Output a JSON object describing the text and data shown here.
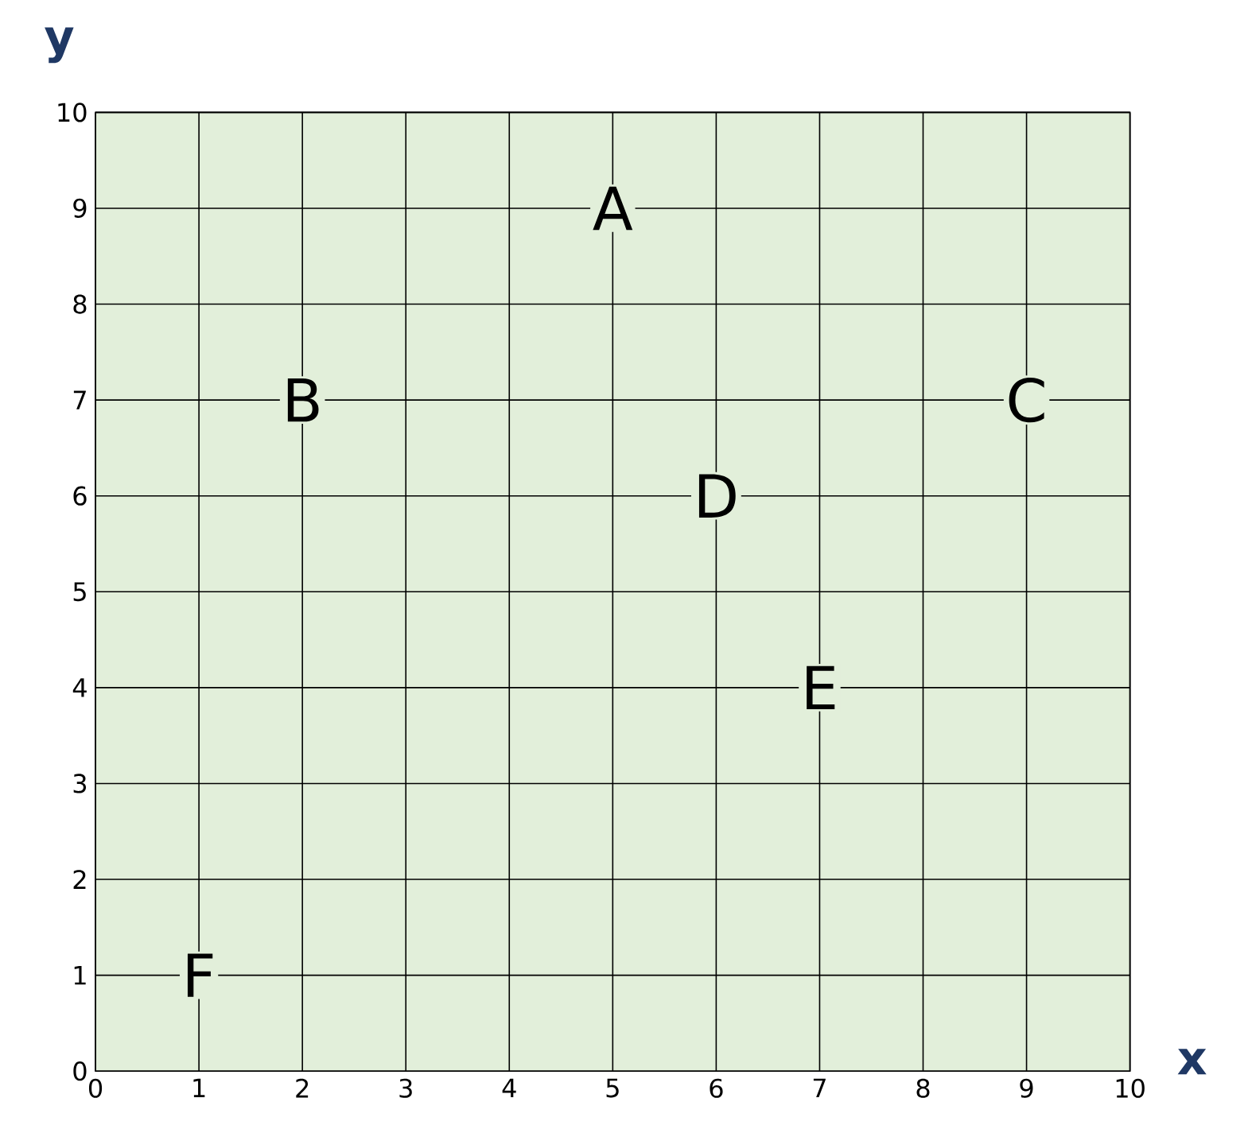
{
  "chart_data": {
    "type": "scatter",
    "xlabel": "x",
    "ylabel": "y",
    "annotations": [
      {
        "text": "A",
        "x": 5,
        "y": 9
      },
      {
        "text": "B",
        "x": 2,
        "y": 7
      },
      {
        "text": "C",
        "x": 9,
        "y": 7
      },
      {
        "text": "D",
        "x": 6,
        "y": 6
      },
      {
        "text": "E",
        "x": 7,
        "y": 4
      },
      {
        "text": "F",
        "x": 1,
        "y": 1
      }
    ],
    "xlim": [
      0,
      10
    ],
    "ylim": [
      0,
      10
    ],
    "xticks": [
      0,
      1,
      2,
      3,
      4,
      5,
      6,
      7,
      8,
      9,
      10
    ],
    "yticks": [
      0,
      1,
      2,
      3,
      4,
      5,
      6,
      7,
      8,
      9,
      10
    ],
    "grid": true
  }
}
